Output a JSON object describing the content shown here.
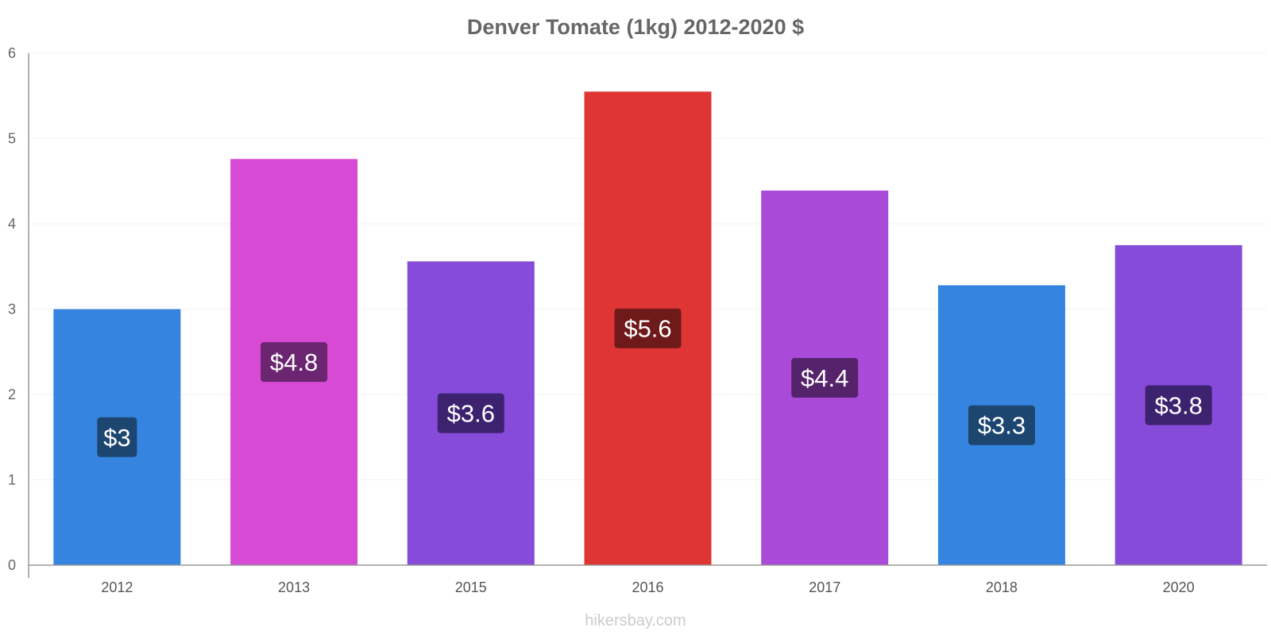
{
  "chart_data": {
    "type": "bar",
    "title": "Denver Tomate (1kg) 2012-2020 $",
    "categories": [
      "2012",
      "2013",
      "2015",
      "2016",
      "2017",
      "2018",
      "2020"
    ],
    "values": [
      3.0,
      4.76,
      3.56,
      5.55,
      4.39,
      3.28,
      3.75
    ],
    "data_labels": [
      "$3",
      "$4.8",
      "$3.6",
      "$5.6",
      "$4.4",
      "$3.3",
      "$3.8"
    ],
    "bar_colors": [
      "#3584e0",
      "#d64ad4",
      "#864bd9",
      "#e03535",
      "#a94ad9",
      "#3584e0",
      "#864bd9"
    ],
    "label_bg_colors": [
      "#1c4670",
      "#6c2570",
      "#3d2270",
      "#6f1a1a",
      "#55236c",
      "#1c4670",
      "#3d2270"
    ],
    "yticks": [
      "0",
      "1",
      "2",
      "3",
      "4",
      "5",
      "6"
    ],
    "ylim": [
      0,
      6
    ],
    "xlabel": "",
    "ylabel": "",
    "grid": true,
    "legend": "none"
  },
  "footer": "hikersbay.com"
}
